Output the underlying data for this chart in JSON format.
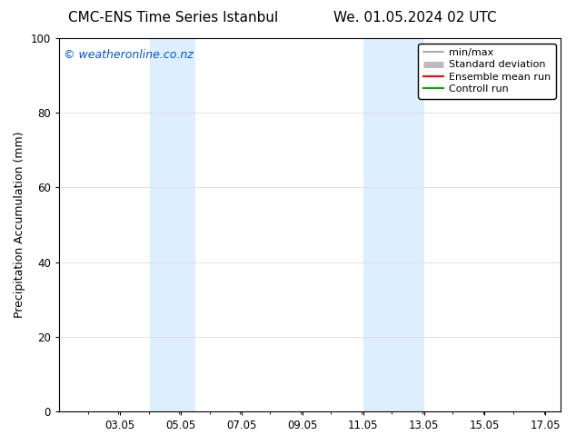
{
  "title_left": "CMC-ENS Time Series Istanbul",
  "title_right": "We. 01.05.2024 02 UTC",
  "ylabel": "Precipitation Accumulation (mm)",
  "watermark": "© weatheronline.co.nz",
  "watermark_color": "#0055cc",
  "ylim": [
    0,
    100
  ],
  "xlim_start": 1.05,
  "xlim_end": 17.55,
  "xtick_positions": [
    3.05,
    5.05,
    7.05,
    9.05,
    11.05,
    13.05,
    15.05,
    17.05
  ],
  "xtick_labels": [
    "03.05",
    "05.05",
    "07.05",
    "09.05",
    "11.05",
    "13.05",
    "15.05",
    "17.05"
  ],
  "yticks": [
    0,
    20,
    40,
    60,
    80,
    100
  ],
  "shaded_bands": [
    {
      "x_start": 4.05,
      "x_end": 5.55
    },
    {
      "x_start": 11.05,
      "x_end": 13.05
    }
  ],
  "shaded_color": "#ddeeff",
  "legend_labels": [
    "min/max",
    "Standard deviation",
    "Ensemble mean run",
    "Controll run"
  ],
  "legend_line_colors": [
    "#999999",
    "#bbbbbb",
    "#ff0000",
    "#00aa00"
  ],
  "background_color": "#ffffff",
  "plot_bg_color": "#ffffff",
  "grid_color": "#dddddd",
  "title_fontsize": 11,
  "tick_fontsize": 8.5,
  "ylabel_fontsize": 9,
  "watermark_fontsize": 9,
  "legend_fontsize": 8
}
